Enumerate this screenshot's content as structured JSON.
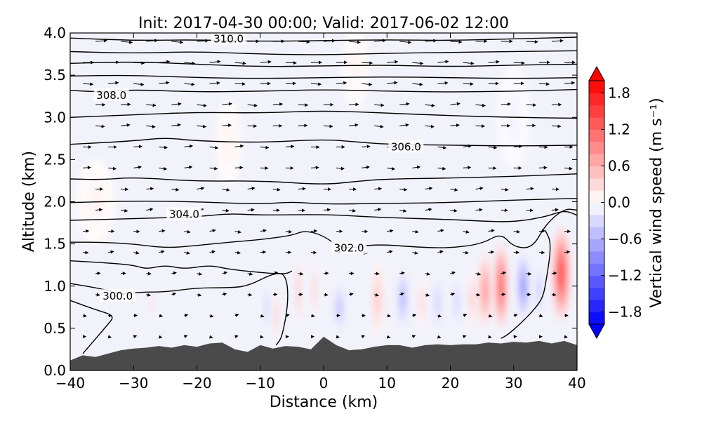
{
  "chart_data": {
    "type": "filled-contour cross-section with isentropes and wind vectors",
    "title": "Init: 2017-04-30 00:00; Valid: 2017-06-02 12:00",
    "xlabel": "Distance (km)",
    "ylabel": "Altitude (km)",
    "xlim": [
      -40,
      40
    ],
    "ylim": [
      0.0,
      4.0
    ],
    "x_ticks": [
      -40,
      -30,
      -20,
      -10,
      0,
      10,
      20,
      30,
      40
    ],
    "x_tick_labels": [
      "−40",
      "−30",
      "−20",
      "−10",
      "0",
      "10",
      "20",
      "30",
      "40"
    ],
    "y_ticks": [
      0.0,
      0.5,
      1.0,
      1.5,
      2.0,
      2.5,
      3.0,
      3.5,
      4.0
    ],
    "y_tick_labels": [
      "0.0",
      "0.5",
      "1.0",
      "1.5",
      "2.0",
      "2.5",
      "3.0",
      "3.5",
      "4.0"
    ],
    "colorbar": {
      "label": "Vertical wind speed (m s⁻¹)",
      "range": [
        -2.0,
        2.0
      ],
      "ticks": [
        1.8,
        1.2,
        0.6,
        0.0,
        -0.6,
        -1.2,
        -1.8
      ],
      "tick_labels": [
        "1.8",
        "1.2",
        "0.6",
        "0.0",
        "−0.6",
        "−1.2",
        "−1.8"
      ],
      "levels": 20,
      "colormap": "bwr",
      "extend": "both"
    },
    "contour_labels": [
      {
        "value": "310.0",
        "x": -15.0,
        "y": 3.93
      },
      {
        "value": "308.0",
        "x": -33.5,
        "y": 3.26
      },
      {
        "value": "306.0",
        "x": 13.0,
        "y": 2.65
      },
      {
        "value": "304.0",
        "x": -22.0,
        "y": 1.85
      },
      {
        "value": "302.0",
        "x": 4.0,
        "y": 1.45
      },
      {
        "value": "300.0",
        "x": -32.5,
        "y": 0.88
      }
    ],
    "contours": [
      {
        "level": 310,
        "points": [
          [
            -40,
            3.94
          ],
          [
            -30,
            3.91
          ],
          [
            -20,
            3.92
          ],
          [
            -10,
            3.9
          ],
          [
            0,
            3.91
          ],
          [
            10,
            3.92
          ],
          [
            20,
            3.91
          ],
          [
            30,
            3.93
          ],
          [
            40,
            3.95
          ]
        ]
      },
      {
        "level": 309.5,
        "points": [
          [
            -40,
            3.78
          ],
          [
            -30,
            3.76
          ],
          [
            -20,
            3.78
          ],
          [
            -10,
            3.75
          ],
          [
            0,
            3.74
          ],
          [
            10,
            3.76
          ],
          [
            20,
            3.77
          ],
          [
            30,
            3.78
          ],
          [
            40,
            3.79
          ]
        ]
      },
      {
        "level": 309,
        "points": [
          [
            -40,
            3.64
          ],
          [
            -30,
            3.66
          ],
          [
            -20,
            3.63
          ],
          [
            -10,
            3.6
          ],
          [
            0,
            3.61
          ],
          [
            10,
            3.62
          ],
          [
            20,
            3.6
          ],
          [
            30,
            3.62
          ],
          [
            40,
            3.63
          ]
        ]
      },
      {
        "level": 308.5,
        "points": [
          [
            -40,
            3.49
          ],
          [
            -30,
            3.5
          ],
          [
            -20,
            3.47
          ],
          [
            -10,
            3.46
          ],
          [
            0,
            3.47
          ],
          [
            10,
            3.48
          ],
          [
            20,
            3.47
          ],
          [
            30,
            3.46
          ],
          [
            40,
            3.47
          ]
        ]
      },
      {
        "level": 308,
        "points": [
          [
            -40,
            3.32
          ],
          [
            -35,
            3.3
          ],
          [
            -30,
            3.33
          ],
          [
            -20,
            3.3
          ],
          [
            -10,
            3.31
          ],
          [
            0,
            3.33
          ],
          [
            10,
            3.31
          ],
          [
            20,
            3.3
          ],
          [
            30,
            3.31
          ],
          [
            40,
            3.33
          ]
        ]
      },
      {
        "level": 307.5,
        "points": [
          [
            -40,
            3.0
          ],
          [
            -30,
            3.03
          ],
          [
            -20,
            3.06
          ],
          [
            -10,
            3.05
          ],
          [
            0,
            3.08
          ],
          [
            10,
            3.05
          ],
          [
            20,
            3.02
          ],
          [
            30,
            3.0
          ],
          [
            40,
            2.99
          ]
        ]
      },
      {
        "level": 306,
        "points": [
          [
            -40,
            2.68
          ],
          [
            -30,
            2.72
          ],
          [
            -25,
            2.76
          ],
          [
            -20,
            2.72
          ],
          [
            -10,
            2.7
          ],
          [
            0,
            2.74
          ],
          [
            5,
            2.71
          ],
          [
            10,
            2.68
          ],
          [
            20,
            2.67
          ],
          [
            30,
            2.66
          ],
          [
            40,
            2.67
          ]
        ]
      },
      {
        "level": 305,
        "points": [
          [
            -40,
            2.27
          ],
          [
            -35,
            2.26
          ],
          [
            -30,
            2.29
          ],
          [
            -20,
            2.24
          ],
          [
            -10,
            2.25
          ],
          [
            0,
            2.2
          ],
          [
            5,
            2.24
          ],
          [
            10,
            2.27
          ],
          [
            20,
            2.28
          ],
          [
            30,
            2.3
          ],
          [
            40,
            2.33
          ]
        ]
      },
      {
        "level": 304.5,
        "points": [
          [
            -40,
            1.99
          ],
          [
            -30,
            2.01
          ],
          [
            -20,
            2.0
          ],
          [
            -10,
            1.97
          ],
          [
            -5,
            2.0
          ],
          [
            0,
            1.97
          ],
          [
            10,
            1.98
          ],
          [
            20,
            1.99
          ],
          [
            30,
            2.02
          ],
          [
            40,
            2.04
          ]
        ]
      },
      {
        "level": 304,
        "points": [
          [
            -40,
            1.78
          ],
          [
            -30,
            1.8
          ],
          [
            -20,
            1.82
          ],
          [
            -15,
            1.86
          ],
          [
            -10,
            1.84
          ],
          [
            0,
            1.85
          ],
          [
            5,
            1.83
          ],
          [
            10,
            1.81
          ],
          [
            20,
            1.79
          ],
          [
            25,
            1.77
          ],
          [
            30,
            1.76
          ],
          [
            35,
            1.82
          ],
          [
            38,
            1.9
          ],
          [
            40,
            1.84
          ]
        ]
      },
      {
        "level": 302,
        "points": [
          [
            -40,
            1.52
          ],
          [
            -35,
            1.52
          ],
          [
            -30,
            1.5
          ],
          [
            -25,
            1.45
          ],
          [
            -20,
            1.48
          ],
          [
            -15,
            1.52
          ],
          [
            -10,
            1.55
          ],
          [
            -5,
            1.6
          ],
          [
            -3,
            1.66
          ],
          [
            0,
            1.6
          ],
          [
            3,
            1.43
          ],
          [
            8,
            1.5
          ],
          [
            15,
            1.46
          ],
          [
            20,
            1.45
          ],
          [
            25,
            1.5
          ],
          [
            28,
            1.63
          ],
          [
            30,
            1.46
          ],
          [
            33,
            1.45
          ],
          [
            35,
            1.73
          ],
          [
            38,
            1.92
          ],
          [
            40,
            1.9
          ]
        ]
      },
      {
        "level": 301,
        "points": [
          [
            -40,
            1.3
          ],
          [
            -35,
            1.28
          ],
          [
            -30,
            1.25
          ],
          [
            -28,
            1.2
          ],
          [
            -25,
            1.25
          ],
          [
            -22,
            1.2
          ],
          [
            -18,
            1.25
          ],
          [
            -15,
            1.2
          ],
          [
            -10,
            1.16
          ],
          [
            -6,
            1.14
          ],
          [
            -5,
            1.18
          ]
        ]
      },
      {
        "level": 300,
        "points": [
          [
            -40,
            1.03
          ],
          [
            -35,
            0.97
          ],
          [
            -32,
            0.9
          ],
          [
            -29,
            0.93
          ],
          [
            -25,
            0.93
          ],
          [
            -20,
            0.98
          ],
          [
            -15,
            0.98
          ],
          [
            -12,
            1.0
          ],
          [
            -8,
            1.15
          ],
          [
            -6,
            1.15
          ],
          [
            -5.5,
            0.85
          ],
          [
            -6.5,
            0.4
          ],
          [
            -7.5,
            0.3
          ]
        ]
      },
      {
        "level": 299.5,
        "points": [
          [
            -40,
            0.83
          ],
          [
            -36,
            0.72
          ],
          [
            -33,
            0.65
          ],
          [
            -34,
            0.55
          ],
          [
            -38,
            0.2
          ]
        ]
      },
      {
        "level": 301.8,
        "points": [
          [
            35,
            1.66
          ],
          [
            36,
            1.5
          ],
          [
            35,
            1.0
          ],
          [
            34.5,
            0.85
          ],
          [
            33,
            0.7
          ],
          [
            31,
            0.55
          ],
          [
            29,
            0.42
          ],
          [
            28,
            0.38
          ]
        ]
      }
    ],
    "terrain": [
      [
        -40,
        0.12
      ],
      [
        -38,
        0.18
      ],
      [
        -36,
        0.16
      ],
      [
        -34,
        0.2
      ],
      [
        -32,
        0.24
      ],
      [
        -30,
        0.26
      ],
      [
        -28,
        0.27
      ],
      [
        -26,
        0.29
      ],
      [
        -24,
        0.27
      ],
      [
        -22,
        0.3
      ],
      [
        -20,
        0.28
      ],
      [
        -18,
        0.32
      ],
      [
        -16,
        0.33
      ],
      [
        -14,
        0.25
      ],
      [
        -12,
        0.22
      ],
      [
        -10,
        0.3
      ],
      [
        -8,
        0.26
      ],
      [
        -6,
        0.29
      ],
      [
        -4,
        0.28
      ],
      [
        -2,
        0.25
      ],
      [
        0,
        0.4
      ],
      [
        2,
        0.3
      ],
      [
        4,
        0.24
      ],
      [
        6,
        0.25
      ],
      [
        8,
        0.28
      ],
      [
        10,
        0.3
      ],
      [
        12,
        0.3
      ],
      [
        14,
        0.27
      ],
      [
        16,
        0.3
      ],
      [
        18,
        0.31
      ],
      [
        20,
        0.3
      ],
      [
        22,
        0.31
      ],
      [
        24,
        0.31
      ],
      [
        26,
        0.33
      ],
      [
        28,
        0.32
      ],
      [
        30,
        0.34
      ],
      [
        32,
        0.33
      ],
      [
        34,
        0.35
      ],
      [
        36,
        0.32
      ],
      [
        38,
        0.35
      ],
      [
        40,
        0.3
      ]
    ],
    "vertical_wind_cells": [
      {
        "x": -27,
        "y": 0.8,
        "w": 0.3,
        "h": 0.15,
        "value": 0.4
      },
      {
        "x": -7.5,
        "y": 0.65,
        "w": 0.4,
        "h": 0.3,
        "value": 0.5
      },
      {
        "x": -9,
        "y": 0.75,
        "w": 0.4,
        "h": 0.3,
        "value": -0.5
      },
      {
        "x": -4,
        "y": 0.95,
        "w": 0.4,
        "h": 0.4,
        "value": 0.6
      },
      {
        "x": -1.5,
        "y": 0.95,
        "w": 0.4,
        "h": 0.35,
        "value": 0.5
      },
      {
        "x": 2.5,
        "y": 0.75,
        "w": 0.8,
        "h": 0.3,
        "value": -0.6
      },
      {
        "x": 8.5,
        "y": 0.85,
        "w": 0.9,
        "h": 0.45,
        "value": 0.5
      },
      {
        "x": 12.5,
        "y": 0.85,
        "w": 0.8,
        "h": 0.35,
        "value": -0.7
      },
      {
        "x": 15.5,
        "y": 0.8,
        "w": 0.6,
        "h": 0.3,
        "value": 0.4
      },
      {
        "x": 18,
        "y": 0.8,
        "w": 0.6,
        "h": 0.35,
        "value": -0.5
      },
      {
        "x": 21,
        "y": 0.8,
        "w": 0.5,
        "h": 0.3,
        "value": -0.5
      },
      {
        "x": 23.5,
        "y": 0.85,
        "w": 0.6,
        "h": 0.35,
        "value": 0.5
      },
      {
        "x": 25.5,
        "y": 0.95,
        "w": 1.1,
        "h": 0.45,
        "value": 0.9
      },
      {
        "x": 28,
        "y": 1.0,
        "w": 1.0,
        "h": 0.5,
        "value": 1.5
      },
      {
        "x": 31.5,
        "y": 1.0,
        "w": 0.9,
        "h": 0.4,
        "value": -1.0
      },
      {
        "x": 34,
        "y": 0.95,
        "w": 0.6,
        "h": 0.35,
        "value": -0.5
      },
      {
        "x": 37.5,
        "y": 1.15,
        "w": 1.4,
        "h": 0.55,
        "value": 1.6
      },
      {
        "x": -36,
        "y": 2.0,
        "w": 3.0,
        "h": 0.5,
        "value": 0.1
      },
      {
        "x": -15,
        "y": 2.7,
        "w": 2.0,
        "h": 0.5,
        "value": 0.1
      },
      {
        "x": 5,
        "y": 3.6,
        "w": 2.0,
        "h": 0.5,
        "value": 0.1
      },
      {
        "x": 30,
        "y": 3.0,
        "w": 2.5,
        "h": 0.6,
        "value": -0.1
      }
    ],
    "wind_vectors_note": "small black wind arrows across the domain, generally pointing east"
  }
}
